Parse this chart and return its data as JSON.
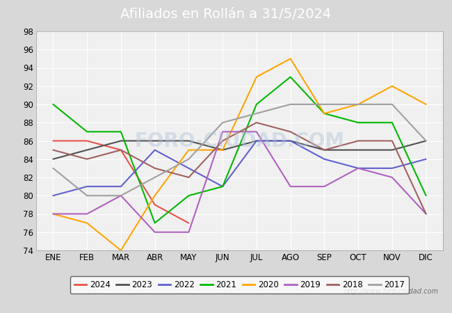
{
  "title": "Afiliados en Rollán a 31/5/2024",
  "title_color": "#ffffff",
  "title_bg_color": "#4d7ebf",
  "months": [
    "ENE",
    "FEB",
    "MAR",
    "ABR",
    "MAY",
    "JUN",
    "JUL",
    "AGO",
    "SEP",
    "OCT",
    "NOV",
    "DIC"
  ],
  "ylim": [
    74,
    98
  ],
  "yticks": [
    74,
    76,
    78,
    80,
    82,
    84,
    86,
    88,
    90,
    92,
    94,
    96,
    98
  ],
  "series": {
    "2024": {
      "color": "#e8524a",
      "data": [
        86,
        86,
        85,
        79,
        77,
        null,
        null,
        null,
        null,
        null,
        null,
        null
      ]
    },
    "2023": {
      "color": "#505050",
      "data": [
        84,
        85,
        86,
        86,
        86,
        85,
        86,
        86,
        85,
        85,
        85,
        86
      ]
    },
    "2022": {
      "color": "#6060d0",
      "data": [
        80,
        81,
        81,
        85,
        83,
        81,
        86,
        86,
        84,
        83,
        83,
        84
      ]
    },
    "2021": {
      "color": "#00b800",
      "data": [
        90,
        87,
        87,
        77,
        80,
        81,
        90,
        93,
        89,
        88,
        88,
        80
      ]
    },
    "2020": {
      "color": "#ffa500",
      "data": [
        78,
        77,
        74,
        80,
        85,
        85,
        93,
        95,
        89,
        90,
        92,
        90
      ]
    },
    "2019": {
      "color": "#b060c0",
      "data": [
        78,
        78,
        80,
        76,
        76,
        87,
        87,
        81,
        81,
        83,
        82,
        78
      ]
    },
    "2018": {
      "color": "#a06060",
      "data": [
        85,
        84,
        85,
        83,
        82,
        86,
        88,
        87,
        85,
        86,
        86,
        78
      ]
    },
    "2017": {
      "color": "#a0a0a0",
      "data": [
        83,
        80,
        80,
        82,
        84,
        88,
        89,
        90,
        90,
        90,
        90,
        86
      ]
    }
  },
  "legend_order": [
    "2024",
    "2023",
    "2022",
    "2021",
    "2020",
    "2019",
    "2018",
    "2017"
  ],
  "watermark": "http://www.foro-ciudad.com",
  "bg_color": "#d8d8d8",
  "plot_bg_color": "#e8e8e8",
  "plot_inner_bg": "#f0f0f0",
  "grid_color": "#ffffff",
  "title_fontsize": 14
}
